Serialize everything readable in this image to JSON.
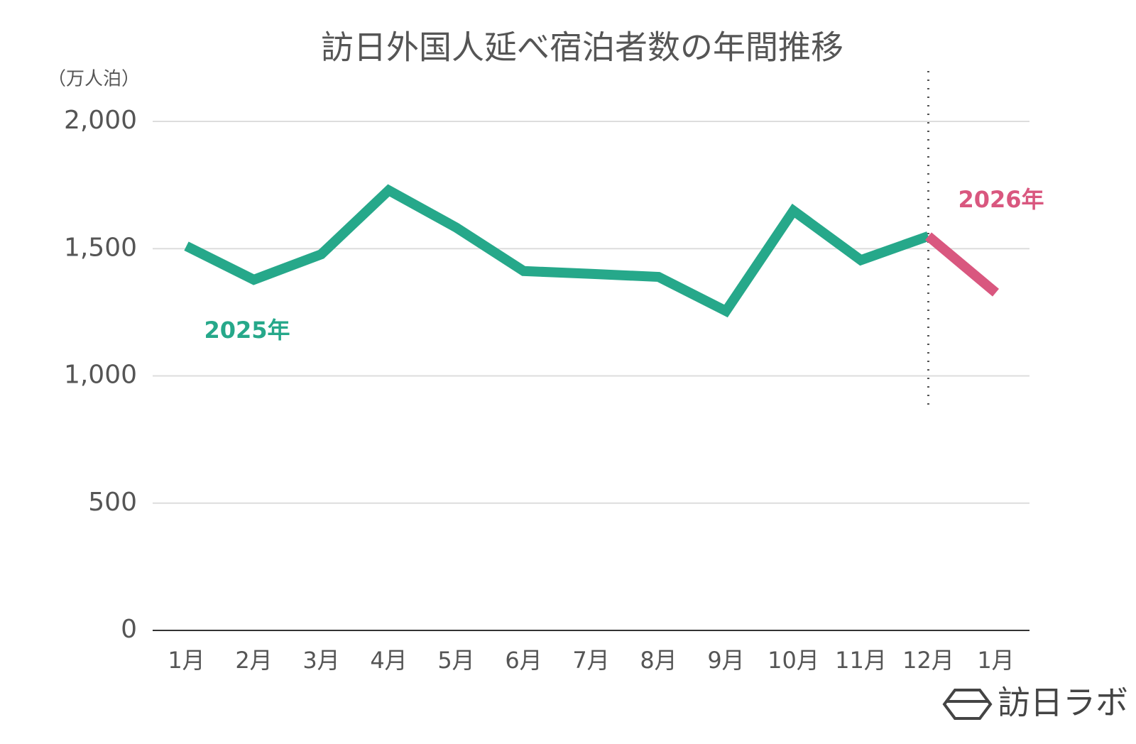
{
  "chart_data": {
    "type": "line",
    "title": "訪日外国人延べ宿泊者数の年間推移",
    "y_label": "（万人泊）",
    "categories": [
      "1月",
      "2月",
      "3月",
      "4月",
      "5月",
      "6月",
      "7月",
      "8月",
      "9月",
      "10月",
      "11月",
      "12月",
      "1月"
    ],
    "series": [
      {
        "name": "2025年",
        "color": "#26a88a",
        "values": [
          1510,
          1378,
          1478,
          1729,
          1583,
          1412,
          1401,
          1389,
          1255,
          1649,
          1455,
          1549,
          null
        ]
      },
      {
        "name": "2026年",
        "color": "#d9577f",
        "values": [
          null,
          null,
          null,
          null,
          null,
          null,
          null,
          null,
          null,
          null,
          null,
          1549,
          1327
        ]
      }
    ],
    "ylim": [
      0,
      2000
    ],
    "yticks": [
      0,
      500,
      {
        "value": 1000,
        "label": "1,000"
      },
      {
        "value": 1500,
        "label": "1,500"
      },
      {
        "value": 2000,
        "label": "2,000"
      }
    ],
    "grid": true,
    "logo": "訪日ラボ"
  }
}
